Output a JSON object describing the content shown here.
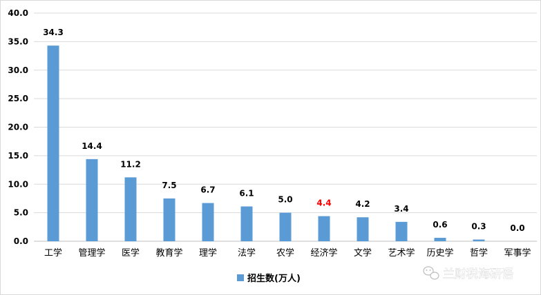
{
  "chart_data": {
    "type": "bar",
    "categories": [
      "工学",
      "管理学",
      "医学",
      "教育学",
      "理学",
      "法学",
      "农学",
      "经济学",
      "文学",
      "艺术学",
      "历史学",
      "哲学",
      "军事学"
    ],
    "series": [
      {
        "name": "招生数(万人)",
        "values": [
          34.3,
          14.4,
          11.2,
          7.5,
          6.7,
          6.1,
          5.0,
          4.4,
          4.2,
          3.4,
          0.6,
          0.3,
          0.0
        ]
      }
    ],
    "data_labels": [
      "34.3",
      "14.4",
      "11.2",
      "7.5",
      "6.7",
      "6.1",
      "5.0",
      "4.4",
      "4.2",
      "3.4",
      "0.6",
      "0.3",
      "0.0"
    ],
    "highlight_index": 7,
    "ylim": [
      0,
      40
    ],
    "yticks": [
      "0.0",
      "5.0",
      "10.0",
      "15.0",
      "20.0",
      "25.0",
      "30.0",
      "35.0",
      "40.0"
    ],
    "grid": true,
    "legend_position": "bottom-center",
    "colors": {
      "bar": "#5b9bd5",
      "grid": "#d9d9d9",
      "label": "#000000",
      "highlight_label": "#ff0000"
    }
  },
  "watermark": {
    "text": "兰财税海研语",
    "icon": "wechat-icon"
  }
}
